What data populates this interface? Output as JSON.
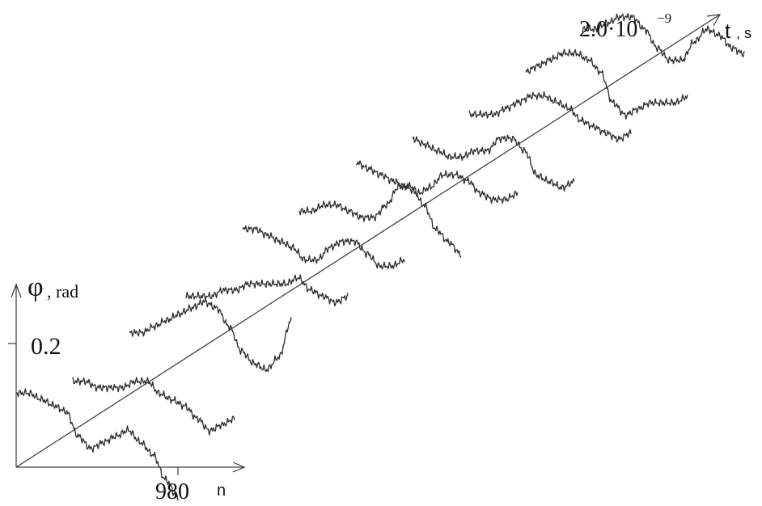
{
  "chart_data": {
    "type": "line",
    "title": "",
    "axes": {
      "y_label": "φ",
      "y_unit": ", rad",
      "y_tick": "0.2",
      "x_tick": "980",
      "x_label": "n",
      "t_label": "t",
      "t_unit": ", s",
      "t_tick_mantissa": "2.0·10",
      "t_tick_exponent": "−9"
    },
    "series": [
      {
        "values": [
          0.12,
          0.12,
          0.11,
          0.1,
          0.09,
          0.05,
          0.03,
          0.04,
          0.05,
          0.06,
          0.04,
          0.02,
          -0.02,
          -0.05
        ]
      },
      {
        "values": [
          0.08,
          0.08,
          0.07,
          0.07,
          0.07,
          0.08,
          0.08,
          0.06,
          0.05,
          0.04,
          0.02,
          0.0,
          0.01,
          0.02
        ]
      },
      {
        "values": [
          0.1,
          0.1,
          0.11,
          0.12,
          0.13,
          0.14,
          0.15,
          0.14,
          0.11,
          0.07,
          0.05,
          0.04,
          0.06,
          0.12
        ]
      },
      {
        "values": [
          0.1,
          0.1,
          0.1,
          0.11,
          0.11,
          0.12,
          0.12,
          0.12,
          0.12,
          0.13,
          0.11,
          0.1,
          0.09,
          0.1
        ]
      },
      {
        "values": [
          0.15,
          0.15,
          0.14,
          0.13,
          0.12,
          0.1,
          0.1,
          0.12,
          0.13,
          0.13,
          0.11,
          0.09,
          0.09,
          0.1
        ]
      },
      {
        "values": [
          0.12,
          0.12,
          0.13,
          0.13,
          0.12,
          0.11,
          0.11,
          0.13,
          0.16,
          0.16,
          0.13,
          0.09,
          0.07,
          0.05
        ]
      },
      {
        "values": [
          0.14,
          0.13,
          0.12,
          0.11,
          0.1,
          0.09,
          0.1,
          0.12,
          0.12,
          0.11,
          0.09,
          0.08,
          0.08,
          0.09
        ]
      },
      {
        "values": [
          0.12,
          0.11,
          0.1,
          0.09,
          0.09,
          0.1,
          0.1,
          0.12,
          0.12,
          0.1,
          0.06,
          0.05,
          0.04,
          0.05
        ]
      },
      {
        "values": [
          0.1,
          0.1,
          0.1,
          0.11,
          0.12,
          0.13,
          0.13,
          0.12,
          0.11,
          0.09,
          0.08,
          0.07,
          0.06,
          0.07
        ]
      },
      {
        "values": [
          0.11,
          0.12,
          0.13,
          0.14,
          0.14,
          0.13,
          0.11,
          0.06,
          0.04,
          0.05,
          0.06,
          0.06,
          0.06,
          0.07
        ]
      },
      {
        "values": [
          0.12,
          0.12,
          0.13,
          0.14,
          0.14,
          0.12,
          0.09,
          0.07,
          0.07,
          0.1,
          0.12,
          0.11,
          0.09,
          0.08
        ]
      }
    ]
  }
}
